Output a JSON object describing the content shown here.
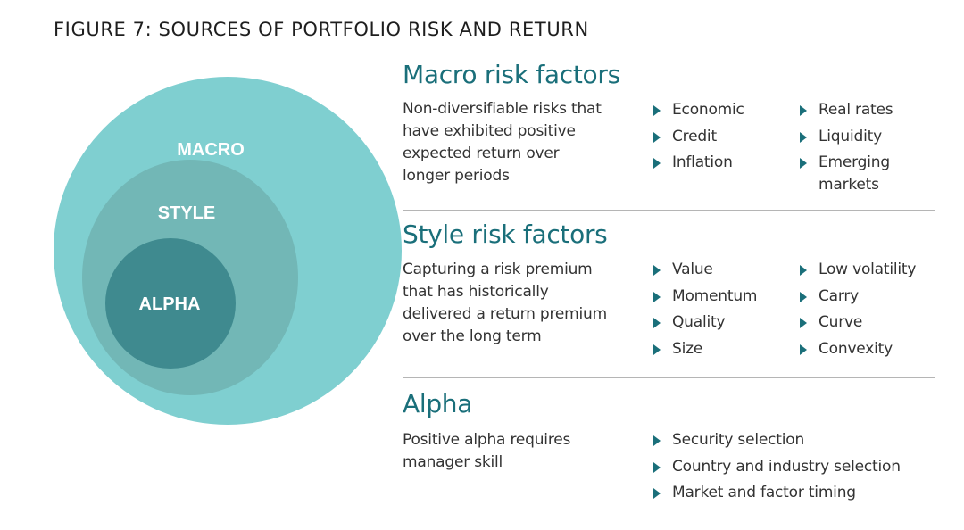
{
  "figure_title": "FIGURE 7: SOURCES OF PORTFOLIO RISK AND RETURN",
  "colors": {
    "heading": "#1a6f7a",
    "macro_circle": "#7fcfd0",
    "style_circle": "#72b7b6",
    "alpha_circle": "#3f8a8f",
    "arrow": "#1a6f7a",
    "divider": "#b5b5b5"
  },
  "diagram": {
    "macro_label": "MACRO",
    "style_label": "STYLE",
    "alpha_label": "ALPHA"
  },
  "sections": {
    "macro": {
      "heading": "Macro risk factors",
      "description": [
        "Non-diversifiable risks that",
        "have exhibited positive",
        "expected return over",
        "longer periods"
      ],
      "col1": [
        "Economic",
        "Credit",
        "Inflation"
      ],
      "col2": [
        "Real rates",
        "Liquidity",
        "Emerging markets"
      ]
    },
    "style": {
      "heading": "Style risk factors",
      "description": [
        "Capturing a risk premium",
        "that has historically",
        "delivered a return premium",
        "over the long term"
      ],
      "col1": [
        "Value",
        "Momentum",
        "Quality",
        "Size"
      ],
      "col2": [
        "Low volatility",
        "Carry",
        "Curve",
        "Convexity"
      ]
    },
    "alpha": {
      "heading": "Alpha",
      "description": [
        "Positive alpha requires",
        "manager skill"
      ],
      "col1": [
        "Security selection",
        "Country and industry selection",
        "Market and factor timing"
      ]
    }
  }
}
